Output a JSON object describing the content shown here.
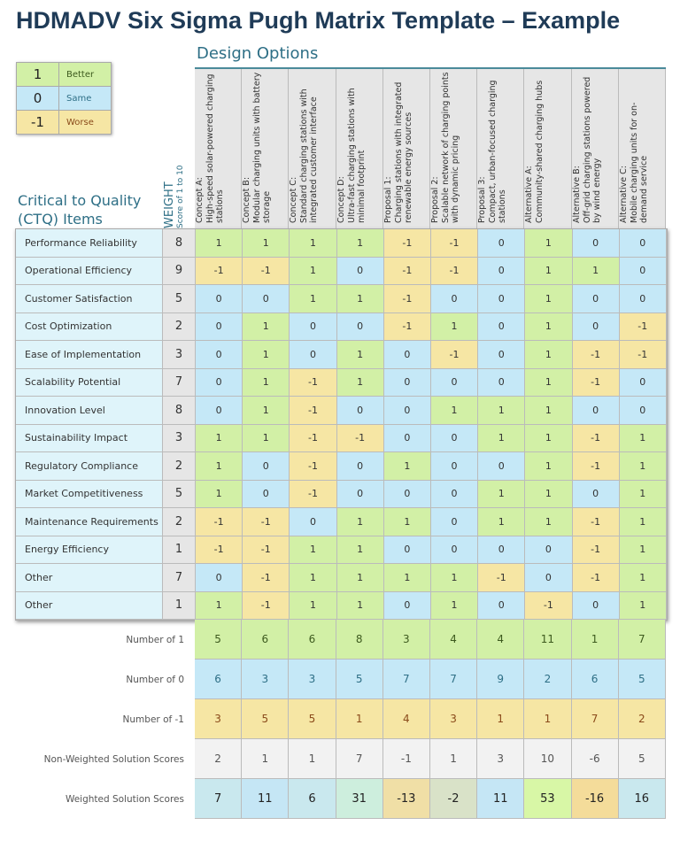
{
  "title": "HDMADV Six Sigma Pugh Matrix Template – Example",
  "colors": {
    "better": "#d2f0a6",
    "same": "#c5e8f7",
    "worse": "#f6e6a4",
    "better_text": "#3d5a1e",
    "same_text": "#2e6f86",
    "worse_text": "#8a4a1a",
    "nonweighted": "#f2f2f2"
  },
  "legend": [
    {
      "value": "1",
      "label": "Better"
    },
    {
      "value": "0",
      "label": "Same"
    },
    {
      "value": "-1",
      "label": "Worse"
    }
  ],
  "design_options_label": "Design Options",
  "ctq_label": "Critical to Quality (CTQ) Items",
  "weight_label": "WEIGHT",
  "weight_sub": "Score of 1 to 10",
  "options": [
    {
      "name": "Concept A:",
      "desc": "High-speed solar-powered charging stations"
    },
    {
      "name": "Concept B:",
      "desc": "Modular charging units with battery storage"
    },
    {
      "name": "Concept C:",
      "desc": "Standard charging stations with integrated customer interface"
    },
    {
      "name": "Concept D:",
      "desc": "Ultra-fast charging stations with minimal footprint"
    },
    {
      "name": "Proposal 1:",
      "desc": "Charging stations with integrated renewable energy sources"
    },
    {
      "name": "Proposal 2:",
      "desc": "Scalable network of charging points with dynamic pricing"
    },
    {
      "name": "Proposal 3:",
      "desc": "Compact, urban-focused charging stations"
    },
    {
      "name": "Alternative A:",
      "desc": "Community-shared charging hubs"
    },
    {
      "name": "Alternative B:",
      "desc": "Off-grid charging stations powered by wind energy"
    },
    {
      "name": "Alternative C:",
      "desc": "Mobile charging units for on-demand service"
    }
  ],
  "rows": [
    {
      "item": "Performance Reliability",
      "weight": "8",
      "scores": [
        "1",
        "1",
        "1",
        "1",
        "-1",
        "-1",
        "0",
        "1",
        "0",
        "0"
      ]
    },
    {
      "item": "Operational Efficiency",
      "weight": "9",
      "scores": [
        "-1",
        "-1",
        "1",
        "0",
        "-1",
        "-1",
        "0",
        "1",
        "1",
        "0"
      ]
    },
    {
      "item": "Customer Satisfaction",
      "weight": "5",
      "scores": [
        "0",
        "0",
        "1",
        "1",
        "-1",
        "0",
        "0",
        "1",
        "0",
        "0"
      ]
    },
    {
      "item": "Cost Optimization",
      "weight": "2",
      "scores": [
        "0",
        "1",
        "0",
        "0",
        "-1",
        "1",
        "0",
        "1",
        "0",
        "-1"
      ]
    },
    {
      "item": "Ease of Implementation",
      "weight": "3",
      "scores": [
        "0",
        "1",
        "0",
        "1",
        "0",
        "-1",
        "0",
        "1",
        "-1",
        "-1"
      ]
    },
    {
      "item": "Scalability Potential",
      "weight": "7",
      "scores": [
        "0",
        "1",
        "-1",
        "1",
        "0",
        "0",
        "0",
        "1",
        "-1",
        "0"
      ]
    },
    {
      "item": "Innovation Level",
      "weight": "8",
      "scores": [
        "0",
        "1",
        "-1",
        "0",
        "0",
        "1",
        "1",
        "1",
        "0",
        "0"
      ]
    },
    {
      "item": "Sustainability Impact",
      "weight": "3",
      "scores": [
        "1",
        "1",
        "-1",
        "-1",
        "0",
        "0",
        "1",
        "1",
        "-1",
        "1"
      ]
    },
    {
      "item": "Regulatory Compliance",
      "weight": "2",
      "scores": [
        "1",
        "0",
        "-1",
        "0",
        "1",
        "0",
        "0",
        "1",
        "-1",
        "1"
      ]
    },
    {
      "item": "Market Competitiveness",
      "weight": "5",
      "scores": [
        "1",
        "0",
        "-1",
        "0",
        "0",
        "0",
        "1",
        "1",
        "0",
        "1"
      ]
    },
    {
      "item": "Maintenance Requirements",
      "weight": "2",
      "scores": [
        "-1",
        "-1",
        "0",
        "1",
        "1",
        "0",
        "1",
        "1",
        "-1",
        "1"
      ]
    },
    {
      "item": "Energy Efficiency",
      "weight": "1",
      "scores": [
        "-1",
        "-1",
        "1",
        "1",
        "0",
        "0",
        "0",
        "0",
        "-1",
        "1"
      ]
    },
    {
      "item": "Other",
      "weight": "7",
      "scores": [
        "0",
        "-1",
        "1",
        "1",
        "1",
        "1",
        "-1",
        "0",
        "-1",
        "1"
      ]
    },
    {
      "item": "Other",
      "weight": "1",
      "scores": [
        "1",
        "-1",
        "1",
        "1",
        "0",
        "1",
        "0",
        "-1",
        "0",
        "1"
      ]
    }
  ],
  "summary": [
    {
      "label": "Number of 1",
      "type": "better",
      "values": [
        "5",
        "6",
        "6",
        "8",
        "3",
        "4",
        "4",
        "11",
        "1",
        "7"
      ]
    },
    {
      "label": "Number of 0",
      "type": "same",
      "values": [
        "6",
        "3",
        "3",
        "5",
        "7",
        "7",
        "9",
        "2",
        "6",
        "5"
      ]
    },
    {
      "label": "Number of -1",
      "type": "worse",
      "values": [
        "3",
        "5",
        "5",
        "1",
        "4",
        "3",
        "1",
        "1",
        "7",
        "2"
      ]
    },
    {
      "label": "Non-Weighted Solution Scores",
      "type": "nonweighted",
      "values": [
        "2",
        "1",
        "1",
        "7",
        "-1",
        "1",
        "3",
        "10",
        "-6",
        "5"
      ]
    },
    {
      "label": "Weighted Solution Scores",
      "type": "weighted",
      "values": [
        "7",
        "11",
        "6",
        "31",
        "-13",
        "-2",
        "11",
        "53",
        "-16",
        "16"
      ],
      "cell_colors": [
        "#c9e8ee",
        "#c5e6f5",
        "#c9e8ee",
        "#cdeedd",
        "#f0dfa6",
        "#d9e2c8",
        "#c5e6f5",
        "#d8f7a6",
        "#f4dc9a",
        "#c9e8ee"
      ]
    }
  ]
}
